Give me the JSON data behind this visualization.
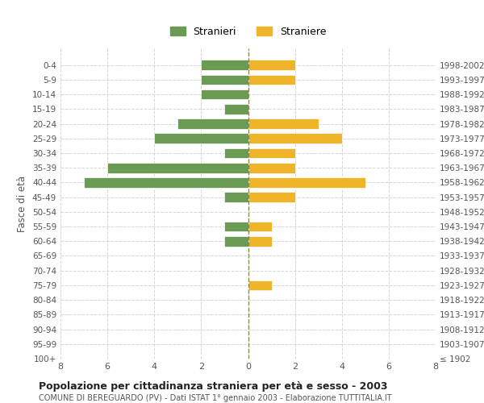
{
  "age_groups": [
    "100+",
    "95-99",
    "90-94",
    "85-89",
    "80-84",
    "75-79",
    "70-74",
    "65-69",
    "60-64",
    "55-59",
    "50-54",
    "45-49",
    "40-44",
    "35-39",
    "30-34",
    "25-29",
    "20-24",
    "15-19",
    "10-14",
    "5-9",
    "0-4"
  ],
  "birth_years": [
    "≤ 1902",
    "1903-1907",
    "1908-1912",
    "1913-1917",
    "1918-1922",
    "1923-1927",
    "1928-1932",
    "1933-1937",
    "1938-1942",
    "1943-1947",
    "1948-1952",
    "1953-1957",
    "1958-1962",
    "1963-1967",
    "1968-1972",
    "1973-1977",
    "1978-1982",
    "1983-1987",
    "1988-1992",
    "1993-1997",
    "1998-2002"
  ],
  "males": [
    0,
    0,
    0,
    0,
    0,
    0,
    0,
    0,
    1,
    1,
    0,
    1,
    7,
    6,
    1,
    4,
    3,
    1,
    2,
    2,
    2
  ],
  "females": [
    0,
    0,
    0,
    0,
    0,
    1,
    0,
    0,
    1,
    1,
    0,
    2,
    5,
    2,
    2,
    4,
    3,
    0,
    0,
    2,
    2
  ],
  "male_color": "#6a9a54",
  "female_color": "#f0b429",
  "background_color": "#ffffff",
  "grid_color": "#cccccc",
  "title": "Popolazione per cittadinanza straniera per età e sesso - 2003",
  "subtitle": "COMUNE DI BEREGUARDO (PV) - Dati ISTAT 1° gennaio 2003 - Elaborazione TUTTITALIA.IT",
  "legend_male": "Stranieri",
  "legend_female": "Straniere",
  "ylabel_left": "Fasce di età",
  "xlim": 8,
  "center_line_color": "#8a8a4a"
}
